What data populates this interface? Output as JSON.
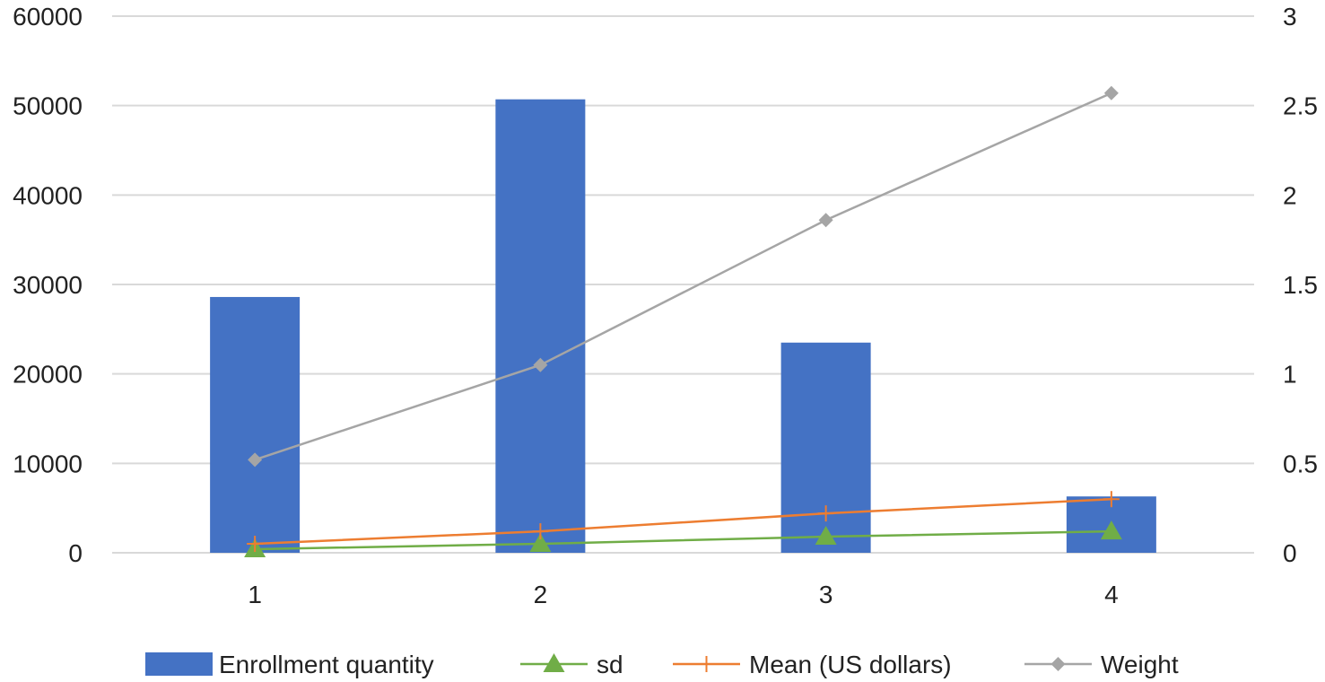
{
  "chart_data": {
    "type": "bar",
    "categories": [
      "1",
      "2",
      "3",
      "4"
    ],
    "series": [
      {
        "name": "Enrollment quantity",
        "kind": "bar",
        "axis": "left",
        "color": "#4472C4",
        "values": [
          28600,
          50700,
          23500,
          6300
        ]
      },
      {
        "name": "sd",
        "kind": "line",
        "marker": "triangle",
        "axis": "right",
        "color": "#70AD47",
        "values": [
          0.02,
          0.05,
          0.09,
          0.12
        ]
      },
      {
        "name": "Mean (US dollars)",
        "kind": "line",
        "marker": "plus",
        "axis": "right",
        "color": "#ED7D31",
        "values": [
          0.05,
          0.12,
          0.22,
          0.3
        ]
      },
      {
        "name": "Weight",
        "kind": "line",
        "marker": "diamond",
        "axis": "right",
        "color": "#A5A5A5",
        "values": [
          0.52,
          1.05,
          1.86,
          2.57
        ]
      }
    ],
    "y_left": {
      "min": 0,
      "max": 60000,
      "ticks": [
        "0",
        "10000",
        "20000",
        "30000",
        "40000",
        "50000",
        "60000"
      ]
    },
    "y_right": {
      "min": 0,
      "max": 3,
      "ticks": [
        "0",
        "0.5",
        "1",
        "1.5",
        "2",
        "2.5",
        "3"
      ]
    },
    "grid": true,
    "legend_position": "bottom"
  }
}
